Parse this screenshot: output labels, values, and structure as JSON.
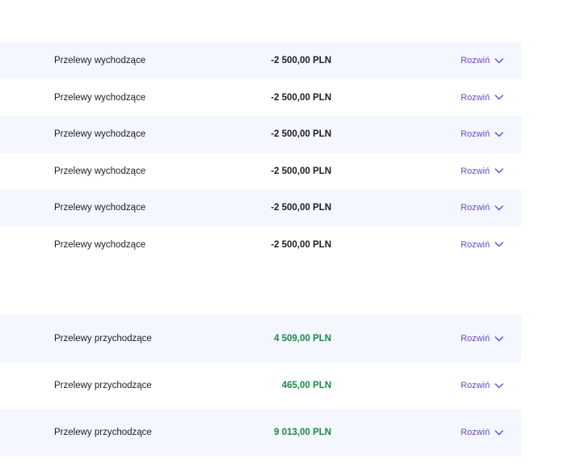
{
  "accent_color": "#6b47c9",
  "income_color": "#1a8a46",
  "outgoing_rows": [
    {
      "label": "Przelewy wychodzące",
      "amount": "-2 500,00 PLN",
      "expand": "Rozwiń"
    },
    {
      "label": "Przelewy wychodzące",
      "amount": "-2 500,00 PLN",
      "expand": "Rozwiń"
    },
    {
      "label": "Przelewy wychodzące",
      "amount": "-2 500,00 PLN",
      "expand": "Rozwiń"
    },
    {
      "label": "Przelewy wychodzące",
      "amount": "-2 500,00 PLN",
      "expand": "Rozwiń"
    },
    {
      "label": "Przelewy wychodzące",
      "amount": "-2 500,00 PLN",
      "expand": "Rozwiń"
    },
    {
      "label": "Przelewy wychodzące",
      "amount": "-2 500,00 PLN",
      "expand": "Rozwiń"
    }
  ],
  "incoming_rows": [
    {
      "label": "Przelewy przychodzące",
      "amount": "4 509,00 PLN",
      "expand": "Rozwiń"
    },
    {
      "label": "Przelewy przychodzące",
      "amount": "465,00 PLN",
      "expand": "Rozwiń"
    },
    {
      "label": "Przelewy przychodzące",
      "amount": "9 013,00 PLN",
      "expand": "Rozwiń"
    }
  ]
}
